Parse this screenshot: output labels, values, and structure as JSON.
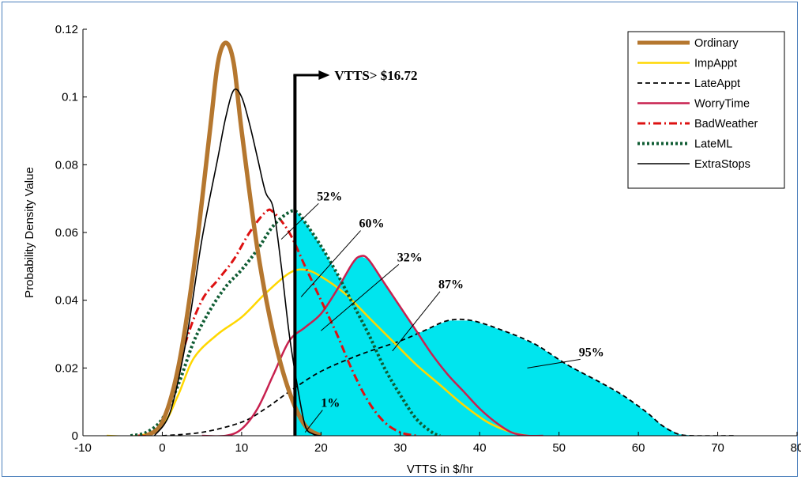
{
  "chart_data": {
    "type": "line",
    "title": "",
    "xlabel": "VTTS in $/hr",
    "ylabel": "Probability Density Value",
    "xlim": [
      -10,
      80
    ],
    "ylim": [
      0,
      0.12
    ],
    "xticks": [
      -10,
      0,
      10,
      20,
      30,
      40,
      50,
      60,
      70,
      80
    ],
    "yticks": [
      0,
      0.02,
      0.04,
      0.06,
      0.08,
      0.1,
      0.12
    ],
    "xtick_labels": [
      "-10",
      "0",
      "10",
      "20",
      "30",
      "40",
      "50",
      "60",
      "70",
      "80"
    ],
    "ytick_labels": [
      "0",
      "0.02",
      "0.04",
      "0.06",
      "0.08",
      "0.1",
      "0.12"
    ],
    "grid": false,
    "legend_position": "top-right",
    "threshold": {
      "x": 16.72,
      "label": "VTTS> $16.72"
    },
    "series": [
      {
        "name": "Ordinary",
        "color": "#b5772f",
        "style": "solid-thick",
        "points": [
          [
            -2,
            0
          ],
          [
            0,
            0.004
          ],
          [
            2,
            0.02
          ],
          [
            4,
            0.05
          ],
          [
            6,
            0.09
          ],
          [
            7,
            0.11
          ],
          [
            8,
            0.116
          ],
          [
            9,
            0.11
          ],
          [
            10,
            0.09
          ],
          [
            12,
            0.055
          ],
          [
            14,
            0.03
          ],
          [
            16,
            0.013
          ],
          [
            18,
            0.003
          ],
          [
            20,
            0
          ]
        ]
      },
      {
        "name": "ImpAppt",
        "color": "#ffd700",
        "style": "solid",
        "points": [
          [
            -7,
            0
          ],
          [
            -3,
            0
          ],
          [
            0,
            0.003
          ],
          [
            2,
            0.012
          ],
          [
            4,
            0.023
          ],
          [
            7,
            0.03
          ],
          [
            10,
            0.035
          ],
          [
            13,
            0.042
          ],
          [
            16,
            0.048
          ],
          [
            18,
            0.049
          ],
          [
            20,
            0.047
          ],
          [
            23,
            0.042
          ],
          [
            26,
            0.035
          ],
          [
            29,
            0.028
          ],
          [
            32,
            0.021
          ],
          [
            35,
            0.015
          ],
          [
            38,
            0.009
          ],
          [
            41,
            0.004
          ],
          [
            44,
            0.001
          ],
          [
            46,
            0
          ]
        ]
      },
      {
        "name": "LateAppt",
        "color": "#000000",
        "style": "dashed",
        "points": [
          [
            0,
            0
          ],
          [
            5,
            0.001
          ],
          [
            10,
            0.004
          ],
          [
            13,
            0.008
          ],
          [
            16,
            0.013
          ],
          [
            20,
            0.019
          ],
          [
            25,
            0.024
          ],
          [
            30,
            0.028
          ],
          [
            33,
            0.031
          ],
          [
            36,
            0.034
          ],
          [
            39,
            0.034
          ],
          [
            43,
            0.031
          ],
          [
            47,
            0.027
          ],
          [
            51,
            0.021
          ],
          [
            55,
            0.016
          ],
          [
            58,
            0.012
          ],
          [
            61,
            0.007
          ],
          [
            63,
            0.003
          ],
          [
            65,
            0.0005
          ],
          [
            67,
            0
          ],
          [
            72,
            0
          ]
        ]
      },
      {
        "name": "WorryTime",
        "color": "#c8214f",
        "style": "solid",
        "points": [
          [
            5,
            0
          ],
          [
            8,
            0
          ],
          [
            10,
            0.002
          ],
          [
            12,
            0.008
          ],
          [
            14,
            0.018
          ],
          [
            16,
            0.028
          ],
          [
            18,
            0.032
          ],
          [
            20,
            0.036
          ],
          [
            22,
            0.043
          ],
          [
            24,
            0.051
          ],
          [
            25,
            0.053
          ],
          [
            26,
            0.052
          ],
          [
            28,
            0.045
          ],
          [
            30,
            0.038
          ],
          [
            32,
            0.031
          ],
          [
            34,
            0.024
          ],
          [
            36,
            0.018
          ],
          [
            38,
            0.013
          ],
          [
            40,
            0.008
          ],
          [
            42,
            0.004
          ],
          [
            44,
            0.001
          ],
          [
            46,
            0
          ],
          [
            48,
            0
          ]
        ]
      },
      {
        "name": "BadWeather",
        "color": "#dd1111",
        "style": "dashdot",
        "points": [
          [
            -3,
            0
          ],
          [
            -1,
            0.001
          ],
          [
            1,
            0.01
          ],
          [
            3,
            0.028
          ],
          [
            5,
            0.04
          ],
          [
            7,
            0.046
          ],
          [
            9,
            0.052
          ],
          [
            11,
            0.06
          ],
          [
            13,
            0.066
          ],
          [
            14,
            0.066
          ],
          [
            16,
            0.06
          ],
          [
            18,
            0.05
          ],
          [
            20,
            0.04
          ],
          [
            22,
            0.03
          ],
          [
            24,
            0.019
          ],
          [
            26,
            0.01
          ],
          [
            28,
            0.004
          ],
          [
            30,
            0.001
          ],
          [
            32,
            0
          ]
        ]
      },
      {
        "name": "LateML",
        "color": "#0f5c33",
        "style": "dotted",
        "points": [
          [
            -4,
            0
          ],
          [
            -2,
            0.001
          ],
          [
            0,
            0.005
          ],
          [
            2,
            0.015
          ],
          [
            4,
            0.028
          ],
          [
            6,
            0.037
          ],
          [
            8,
            0.044
          ],
          [
            10,
            0.049
          ],
          [
            12,
            0.055
          ],
          [
            14,
            0.062
          ],
          [
            16,
            0.066
          ],
          [
            17,
            0.066
          ],
          [
            18,
            0.063
          ],
          [
            20,
            0.056
          ],
          [
            22,
            0.048
          ],
          [
            24,
            0.039
          ],
          [
            26,
            0.03
          ],
          [
            28,
            0.02
          ],
          [
            30,
            0.012
          ],
          [
            32,
            0.005
          ],
          [
            34,
            0.001
          ],
          [
            35,
            0
          ]
        ]
      },
      {
        "name": "ExtraStops",
        "color": "#000000",
        "style": "solid-thin",
        "points": [
          [
            -1,
            0
          ],
          [
            1,
            0.007
          ],
          [
            3,
            0.028
          ],
          [
            5,
            0.058
          ],
          [
            7,
            0.082
          ],
          [
            8,
            0.094
          ],
          [
            9,
            0.102
          ],
          [
            10,
            0.1
          ],
          [
            11,
            0.092
          ],
          [
            12,
            0.082
          ],
          [
            13,
            0.072
          ],
          [
            14,
            0.067
          ],
          [
            15,
            0.05
          ],
          [
            16,
            0.03
          ],
          [
            17,
            0.015
          ],
          [
            18,
            0.003
          ],
          [
            19,
            0.0005
          ],
          [
            20,
            0
          ]
        ]
      }
    ],
    "annotations": [
      {
        "text": "52%",
        "x": 19.5,
        "y": 0.0695,
        "to": [
          15,
          0.058
        ]
      },
      {
        "text": "60%",
        "x": 24.8,
        "y": 0.0615,
        "to": [
          17.5,
          0.041
        ]
      },
      {
        "text": "32%",
        "x": 29.6,
        "y": 0.0515,
        "to": [
          20,
          0.031
        ]
      },
      {
        "text": "87%",
        "x": 34.8,
        "y": 0.0435,
        "to": [
          29,
          0.025
        ]
      },
      {
        "text": "95%",
        "x": 52.5,
        "y": 0.0235,
        "to": [
          46,
          0.02
        ]
      },
      {
        "text": "1%",
        "x": 20,
        "y": 0.0085,
        "to": [
          18,
          0.001
        ]
      }
    ]
  }
}
